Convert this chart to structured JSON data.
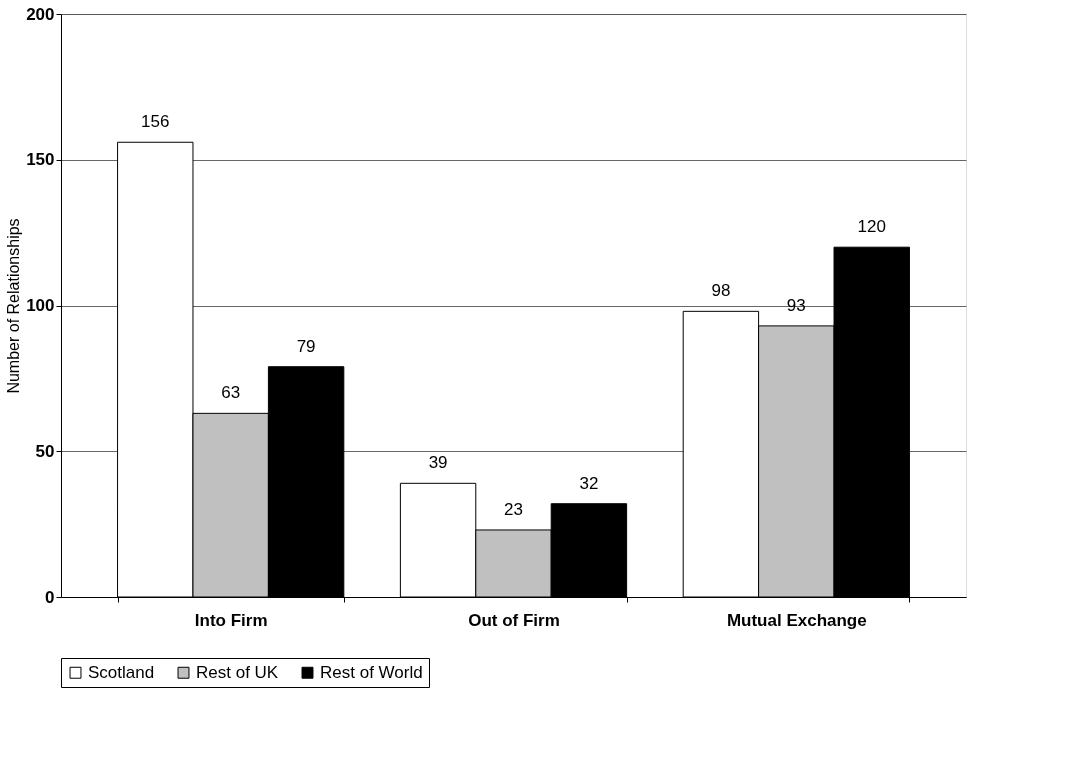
{
  "chart_data": {
    "type": "bar",
    "ylabel": "Number of Relationships",
    "categories": [
      "Into Firm",
      "Out of Firm",
      "Mutual Exchange"
    ],
    "series": [
      {
        "name": "Scotland",
        "color": "#ffffff",
        "values": [
          156,
          39,
          98
        ]
      },
      {
        "name": "Rest of UK",
        "color": "#c0c0c0",
        "values": [
          63,
          23,
          93
        ]
      },
      {
        "name": "Rest of World",
        "color": "#000000",
        "values": [
          79,
          32,
          120
        ]
      }
    ],
    "ylim": [
      0,
      200
    ],
    "yticks": [
      0,
      50,
      100,
      150,
      200
    ],
    "grid": "y",
    "legend": "bottom",
    "data_labels": true
  }
}
